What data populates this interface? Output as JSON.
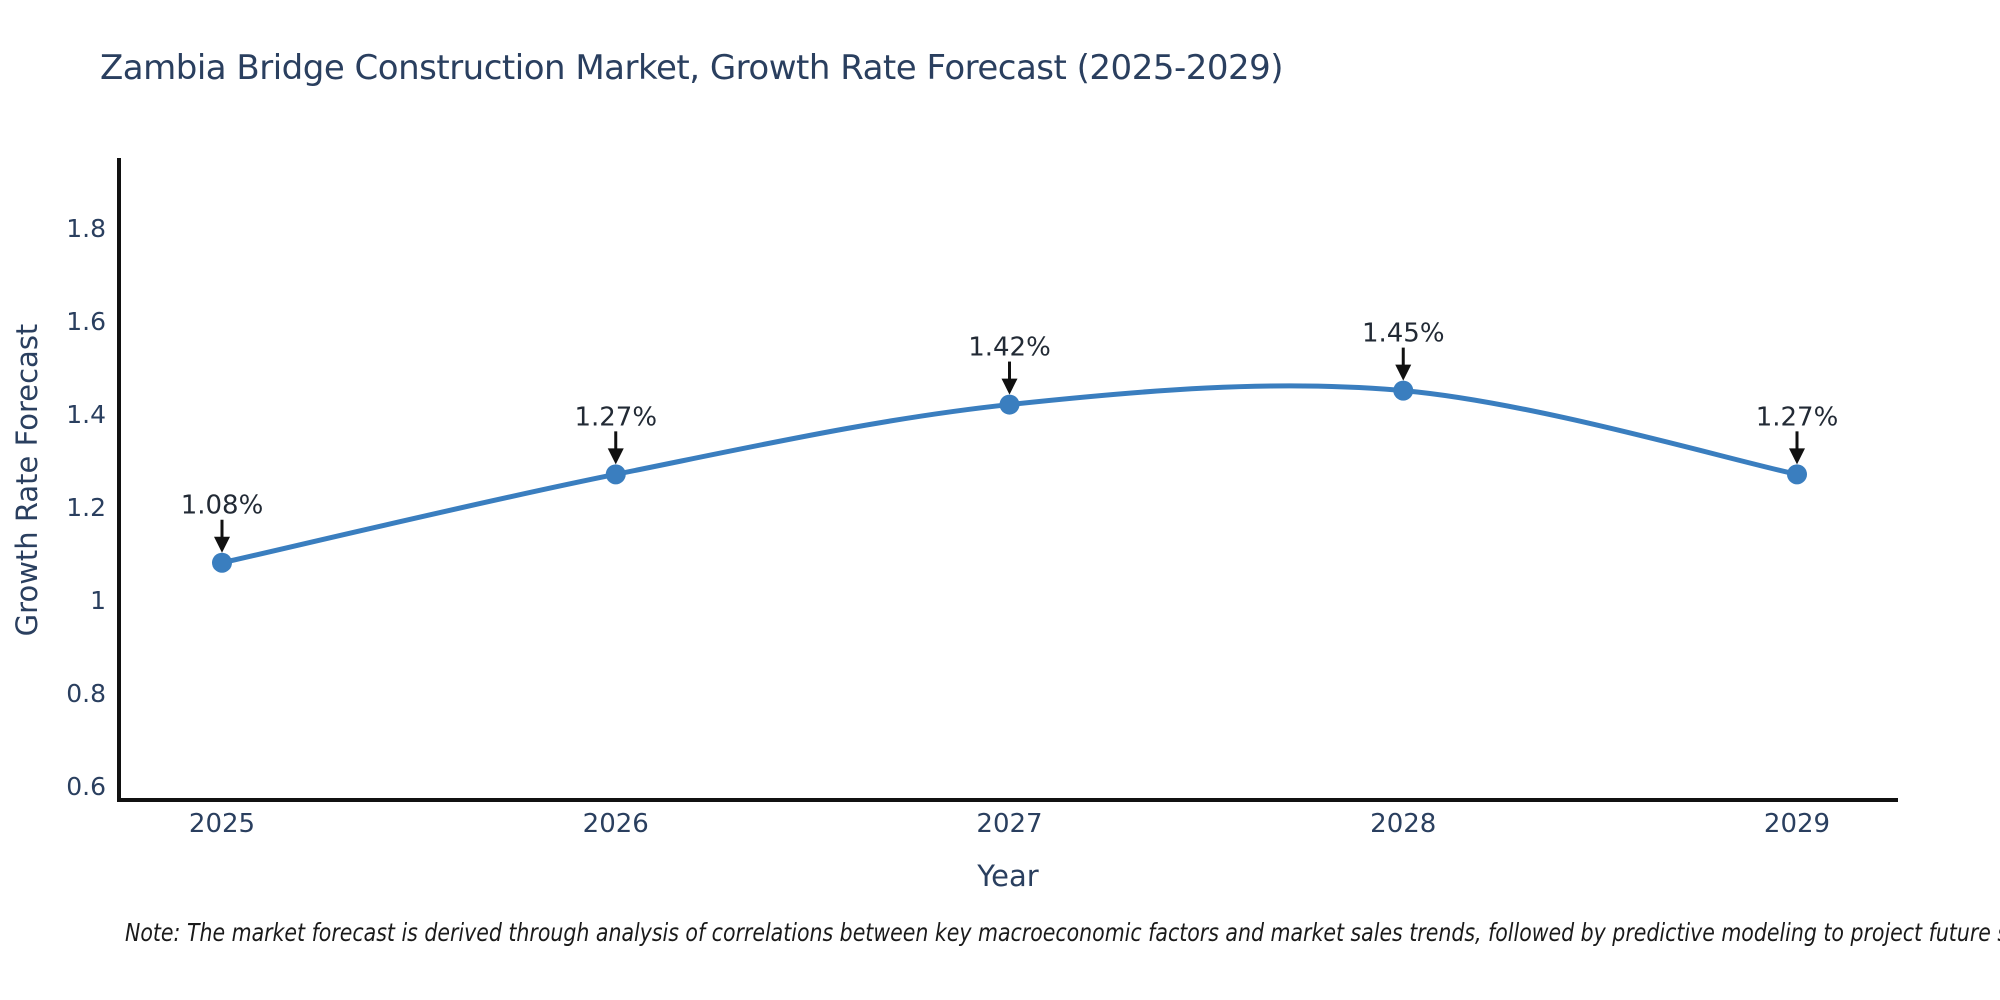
{
  "chart_data": {
    "type": "line",
    "title": "Zambia Bridge Construction Market, Growth Rate Forecast (2025-2029)",
    "xlabel": "Year",
    "ylabel": "Growth Rate Forecast",
    "x": [
      2025,
      2026,
      2027,
      2028,
      2029
    ],
    "series": [
      {
        "name": "Growth Rate Forecast",
        "values": [
          1.08,
          1.27,
          1.42,
          1.45,
          1.27
        ],
        "point_labels": [
          "1.08%",
          "1.27%",
          "1.42%",
          "1.45%",
          "1.27%"
        ]
      }
    ],
    "line_shape": "spline",
    "markers": true,
    "annotation_style": "label-above-with-down-arrow",
    "yticks": [
      0.6,
      0.8,
      1.0,
      1.2,
      1.4,
      1.6,
      1.8
    ],
    "ytick_labels": [
      "0.6",
      "0.8",
      "1",
      "1.2",
      "1.4",
      "1.6",
      "1.8"
    ],
    "xtick_labels": [
      "2025",
      "2026",
      "2027",
      "2028",
      "2029"
    ],
    "ylim": [
      0.57,
      1.95
    ],
    "grid": false,
    "legend": "none",
    "colors": {
      "line": "#3a7ebf",
      "marker": "#3a7ebf",
      "axis": "#111111",
      "text": "#2a3f5f",
      "annotation": "#222a35",
      "arrow": "#111111",
      "background": "#ffffff"
    }
  },
  "note": {
    "text": "Note: The market forecast is derived through analysis of correlations between key macroeconomic factors and market sales trends, followed by predictive modeling to project future sales"
  }
}
